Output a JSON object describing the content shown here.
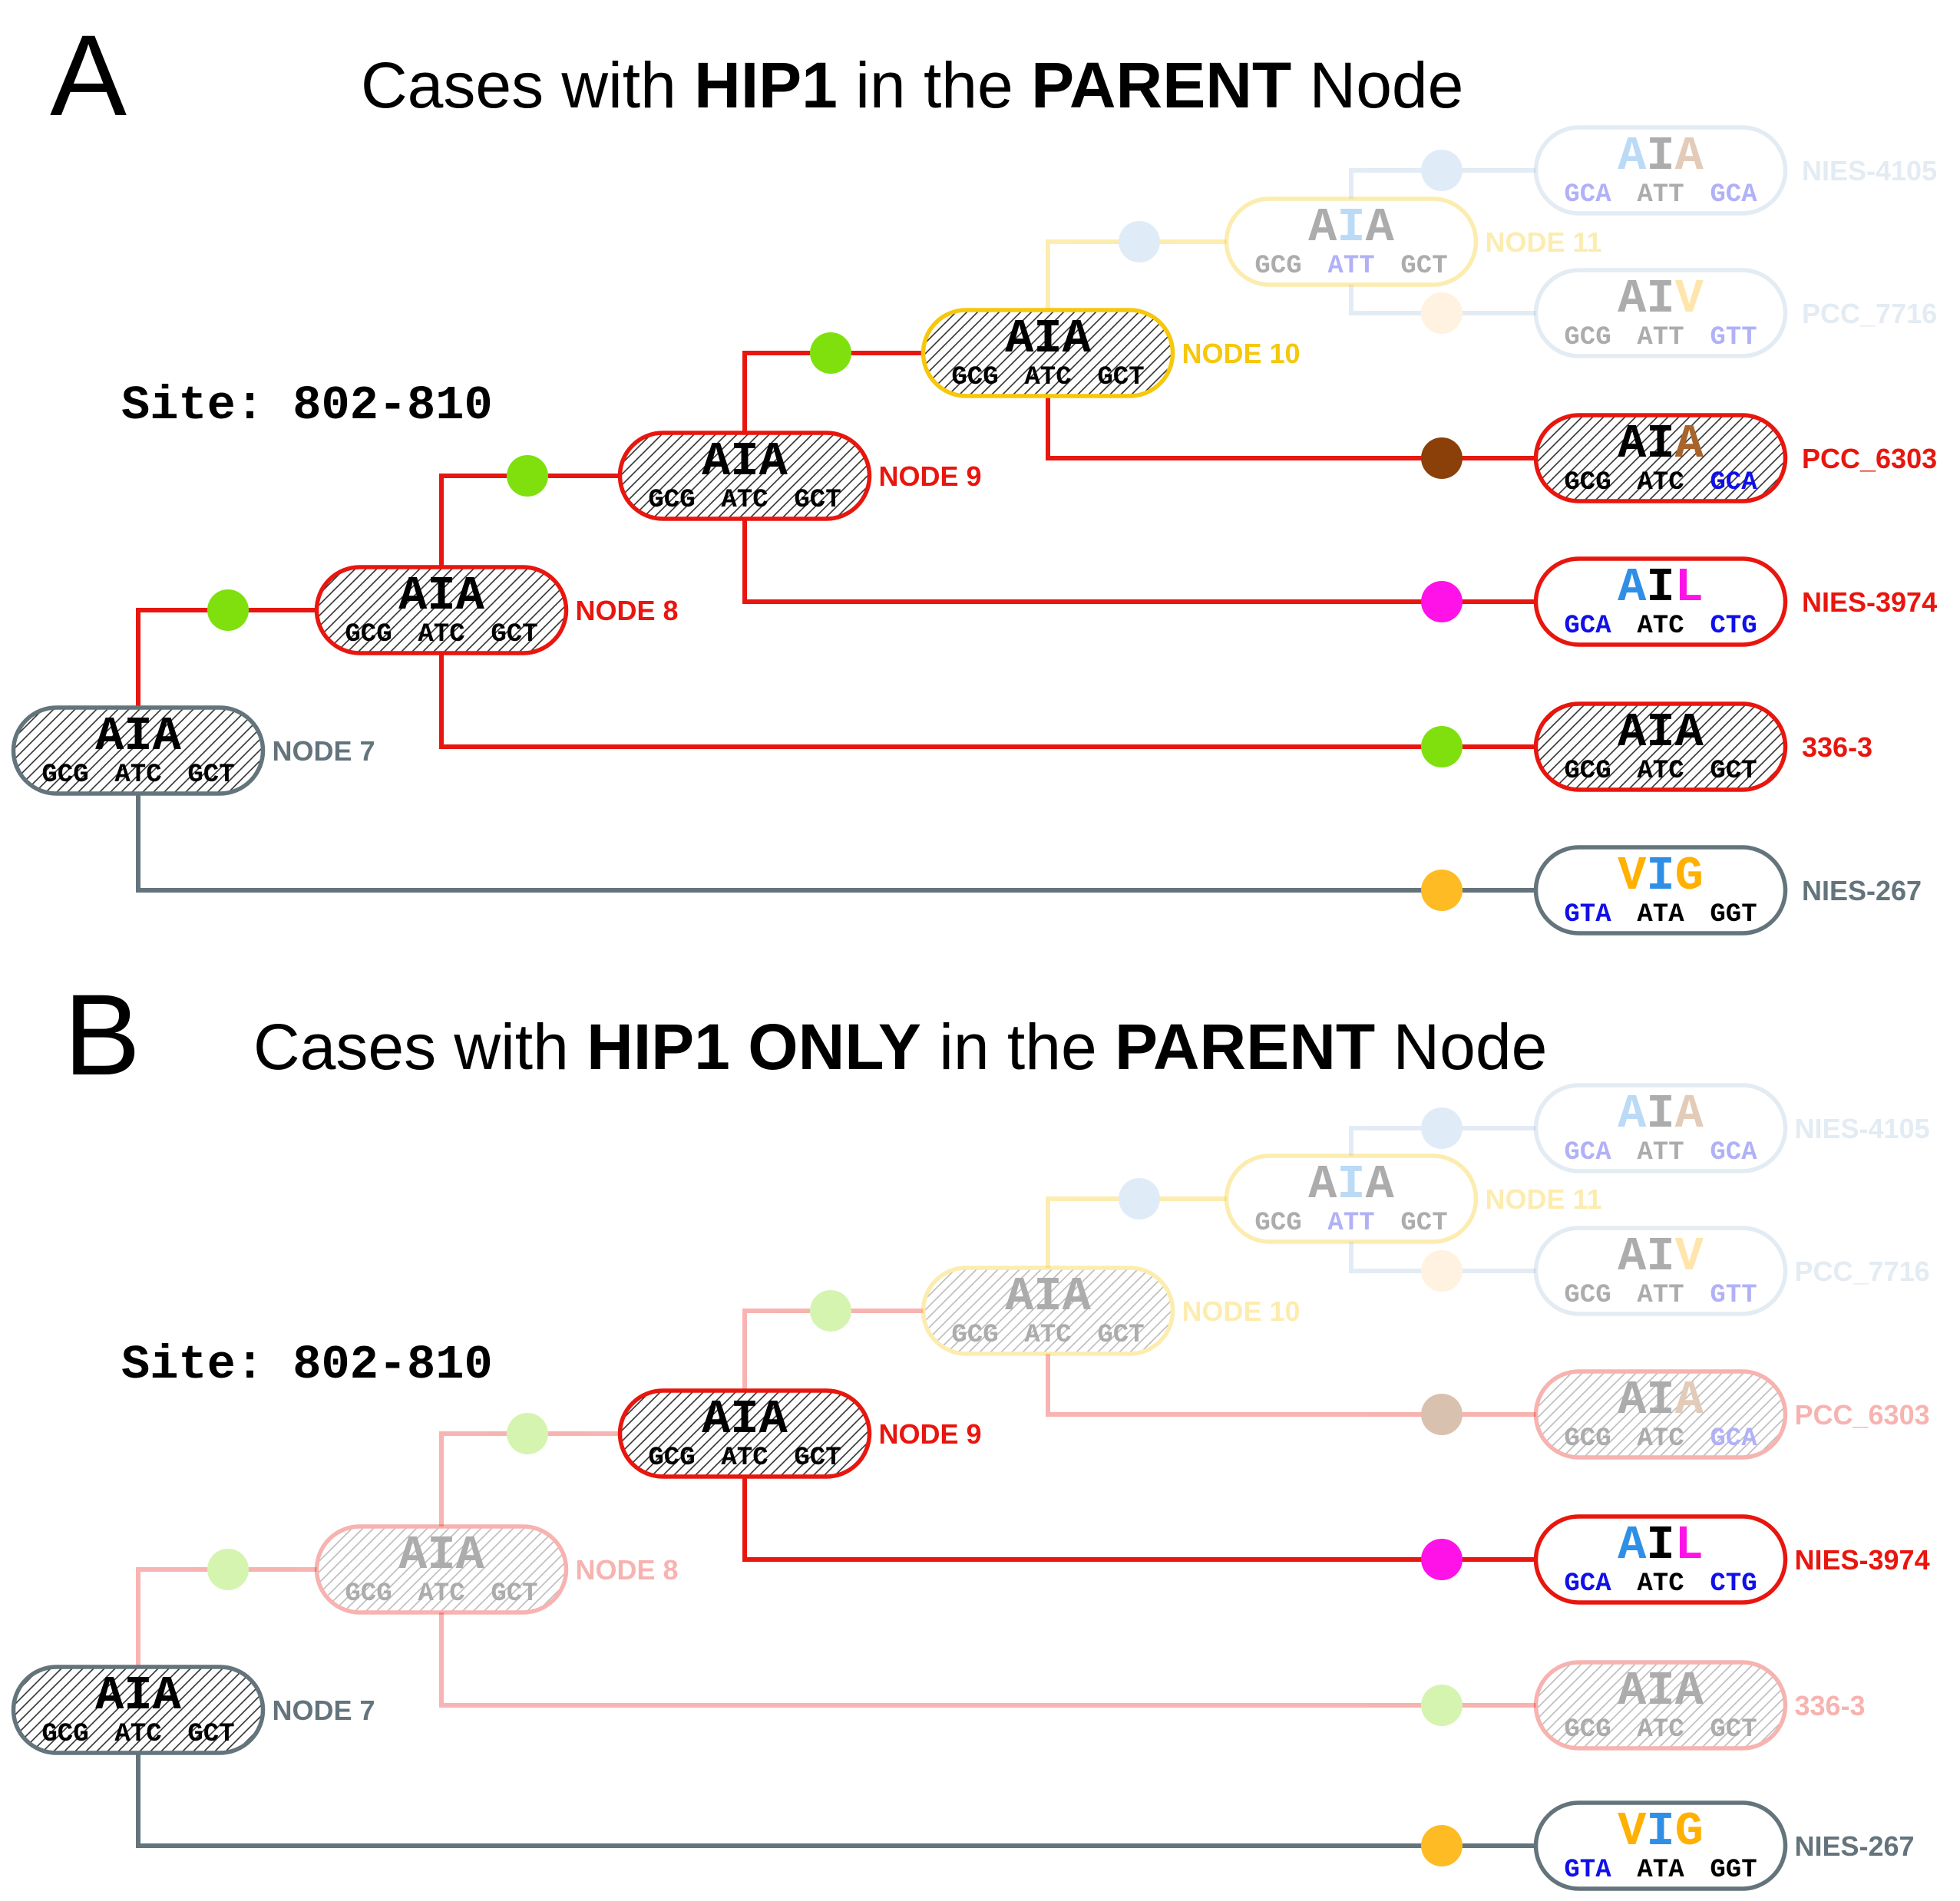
{
  "colors": {
    "red": "#e8160e",
    "gray": "#64747c",
    "yellow": "#f6c70a",
    "light_blue": "#a9c3dc",
    "green": "#7fe00e",
    "brown": "#8b4009",
    "magenta": "#ff12e7",
    "orange": "#ffbb24",
    "sky": "#9fc5ea",
    "pale_orange": "#ffd9a0",
    "aa_blue": "#2f8fe6",
    "codon_blue": "#1010e8",
    "aa_brown": "#a8642a",
    "aa_orange": "#ffb000"
  },
  "panels": [
    {
      "letter": "A",
      "title": [
        {
          "text": "Cases with ",
          "bold": false
        },
        {
          "text": "HIP1",
          "bold": true
        },
        {
          "text": " in the ",
          "bold": false
        },
        {
          "text": "PARENT",
          "bold": true
        },
        {
          "text": " Node",
          "bold": false
        }
      ],
      "site": "Site: 802-810",
      "nodes": [
        {
          "id": "n7",
          "label": "NODE 7",
          "aa": [
            [
              "A",
              "black"
            ],
            [
              "I",
              "black"
            ],
            [
              "A",
              "black"
            ]
          ],
          "codons": [
            [
              "GCG",
              "black"
            ],
            [
              "ATC",
              "black"
            ],
            [
              "GCT",
              "black"
            ]
          ],
          "hatched": true,
          "border": "gray",
          "label_color": "gray",
          "faded": false
        },
        {
          "id": "n8",
          "label": "NODE 8",
          "aa": [
            [
              "A",
              "black"
            ],
            [
              "I",
              "black"
            ],
            [
              "A",
              "black"
            ]
          ],
          "codons": [
            [
              "GCG",
              "black"
            ],
            [
              "ATC",
              "black"
            ],
            [
              "GCT",
              "black"
            ]
          ],
          "hatched": true,
          "border": "red",
          "label_color": "red",
          "faded": false
        },
        {
          "id": "n9",
          "label": "NODE 9",
          "aa": [
            [
              "A",
              "black"
            ],
            [
              "I",
              "black"
            ],
            [
              "A",
              "black"
            ]
          ],
          "codons": [
            [
              "GCG",
              "black"
            ],
            [
              "ATC",
              "black"
            ],
            [
              "GCT",
              "black"
            ]
          ],
          "hatched": true,
          "border": "red",
          "label_color": "red",
          "faded": false
        },
        {
          "id": "n10",
          "label": "NODE 10",
          "aa": [
            [
              "A",
              "black"
            ],
            [
              "I",
              "black"
            ],
            [
              "A",
              "black"
            ]
          ],
          "codons": [
            [
              "GCG",
              "black"
            ],
            [
              "ATC",
              "black"
            ],
            [
              "GCT",
              "black"
            ]
          ],
          "hatched": true,
          "border": "yellow",
          "label_color": "yellow",
          "faded": false
        },
        {
          "id": "n11",
          "label": "NODE 11",
          "aa": [
            [
              "A",
              "black"
            ],
            [
              "I",
              "aa_blue"
            ],
            [
              "A",
              "black"
            ]
          ],
          "codons": [
            [
              "GCG",
              "black"
            ],
            [
              "ATT",
              "codon_blue"
            ],
            [
              "GCT",
              "black"
            ]
          ],
          "hatched": false,
          "border": "yellow",
          "label_color": "yellow",
          "faded": true
        },
        {
          "id": "nies4105",
          "label": "NIES-4105",
          "aa": [
            [
              "A",
              "aa_blue"
            ],
            [
              "I",
              "black"
            ],
            [
              "A",
              "aa_brown"
            ]
          ],
          "codons": [
            [
              "GCA",
              "codon_blue"
            ],
            [
              "ATT",
              "black"
            ],
            [
              "GCA",
              "codon_blue"
            ]
          ],
          "hatched": false,
          "border": "light_blue",
          "label_color": "light_blue",
          "faded": true
        },
        {
          "id": "pcc7716",
          "label": "PCC_7716",
          "aa": [
            [
              "A",
              "black"
            ],
            [
              "I",
              "black"
            ],
            [
              "V",
              "aa_orange"
            ]
          ],
          "codons": [
            [
              "GCG",
              "black"
            ],
            [
              "ATT",
              "black"
            ],
            [
              "GTT",
              "codon_blue"
            ]
          ],
          "hatched": false,
          "border": "light_blue",
          "label_color": "light_blue",
          "faded": true
        },
        {
          "id": "pcc6303",
          "label": "PCC_6303",
          "aa": [
            [
              "A",
              "black"
            ],
            [
              "I",
              "black"
            ],
            [
              "A",
              "aa_brown"
            ]
          ],
          "codons": [
            [
              "GCG",
              "black"
            ],
            [
              "ATC",
              "black"
            ],
            [
              "GCA",
              "codon_blue"
            ]
          ],
          "hatched": true,
          "border": "red",
          "label_color": "red",
          "faded": false
        },
        {
          "id": "nies3974",
          "label": "NIES-3974",
          "aa": [
            [
              "A",
              "aa_blue"
            ],
            [
              "I",
              "black"
            ],
            [
              "L",
              "magenta"
            ]
          ],
          "codons": [
            [
              "GCA",
              "codon_blue"
            ],
            [
              "ATC",
              "black"
            ],
            [
              "CTG",
              "codon_blue"
            ]
          ],
          "hatched": false,
          "border": "red",
          "label_color": "red",
          "faded": false
        },
        {
          "id": "s3363",
          "label": "336-3",
          "aa": [
            [
              "A",
              "black"
            ],
            [
              "I",
              "black"
            ],
            [
              "A",
              "black"
            ]
          ],
          "codons": [
            [
              "GCG",
              "black"
            ],
            [
              "ATC",
              "black"
            ],
            [
              "GCT",
              "black"
            ]
          ],
          "hatched": true,
          "border": "red",
          "label_color": "red",
          "faded": false
        },
        {
          "id": "nies267",
          "label": "NIES-267",
          "aa": [
            [
              "V",
              "aa_orange"
            ],
            [
              "I",
              "aa_blue"
            ],
            [
              "G",
              "aa_orange"
            ]
          ],
          "codons": [
            [
              "GTA",
              "codon_blue"
            ],
            [
              "ATA",
              "black"
            ],
            [
              "GGT",
              "black"
            ]
          ],
          "hatched": false,
          "border": "gray",
          "label_color": "gray",
          "faded": false
        }
      ],
      "edges": [
        {
          "from": "n7",
          "to": "n8",
          "color": "red",
          "dot": "green",
          "faded": false
        },
        {
          "from": "n7",
          "to": "nies267",
          "color": "gray",
          "dot": "orange",
          "faded": false
        },
        {
          "from": "n8",
          "to": "n9",
          "color": "red",
          "dot": "green",
          "faded": false
        },
        {
          "from": "n8",
          "to": "s3363",
          "color": "red",
          "dot": "green",
          "faded": false
        },
        {
          "from": "n9",
          "to": "n10",
          "color": "red",
          "dot": "green",
          "faded": false
        },
        {
          "from": "n9",
          "to": "nies3974",
          "color": "red",
          "dot": "magenta",
          "faded": false
        },
        {
          "from": "n10",
          "to": "n11",
          "color": "yellow",
          "dot": "sky",
          "faded": true
        },
        {
          "from": "n10",
          "to": "pcc6303",
          "color": "red",
          "dot": "brown",
          "faded": false
        },
        {
          "from": "n11",
          "to": "nies4105",
          "color": "light_blue",
          "dot": "sky",
          "faded": true
        },
        {
          "from": "n11",
          "to": "pcc7716",
          "color": "light_blue",
          "dot": "pale_orange",
          "faded": true
        }
      ]
    },
    {
      "letter": "B",
      "title": [
        {
          "text": "Cases with ",
          "bold": false
        },
        {
          "text": "HIP1",
          "bold": true
        },
        {
          "text": " ONLY",
          "bold": true
        },
        {
          "text": " in the ",
          "bold": false
        },
        {
          "text": "PARENT",
          "bold": true
        },
        {
          "text": " Node",
          "bold": false
        }
      ],
      "site": "Site: 802-810",
      "nodes": [
        {
          "id": "n7",
          "label": "NODE 7",
          "aa": [
            [
              "A",
              "black"
            ],
            [
              "I",
              "black"
            ],
            [
              "A",
              "black"
            ]
          ],
          "codons": [
            [
              "GCG",
              "black"
            ],
            [
              "ATC",
              "black"
            ],
            [
              "GCT",
              "black"
            ]
          ],
          "hatched": true,
          "border": "gray",
          "label_color": "gray",
          "faded": false
        },
        {
          "id": "n8",
          "label": "NODE 8",
          "aa": [
            [
              "A",
              "black"
            ],
            [
              "I",
              "black"
            ],
            [
              "A",
              "black"
            ]
          ],
          "codons": [
            [
              "GCG",
              "black"
            ],
            [
              "ATC",
              "black"
            ],
            [
              "GCT",
              "black"
            ]
          ],
          "hatched": true,
          "border": "red",
          "label_color": "red",
          "faded": true
        },
        {
          "id": "n9",
          "label": "NODE 9",
          "aa": [
            [
              "A",
              "black"
            ],
            [
              "I",
              "black"
            ],
            [
              "A",
              "black"
            ]
          ],
          "codons": [
            [
              "GCG",
              "black"
            ],
            [
              "ATC",
              "black"
            ],
            [
              "GCT",
              "black"
            ]
          ],
          "hatched": true,
          "border": "red",
          "label_color": "red",
          "faded": false
        },
        {
          "id": "n10",
          "label": "NODE 10",
          "aa": [
            [
              "A",
              "black"
            ],
            [
              "I",
              "black"
            ],
            [
              "A",
              "black"
            ]
          ],
          "codons": [
            [
              "GCG",
              "black"
            ],
            [
              "ATC",
              "black"
            ],
            [
              "GCT",
              "black"
            ]
          ],
          "hatched": true,
          "border": "yellow",
          "label_color": "yellow",
          "faded": true
        },
        {
          "id": "n11",
          "label": "NODE 11",
          "aa": [
            [
              "A",
              "black"
            ],
            [
              "I",
              "aa_blue"
            ],
            [
              "A",
              "black"
            ]
          ],
          "codons": [
            [
              "GCG",
              "black"
            ],
            [
              "ATT",
              "codon_blue"
            ],
            [
              "GCT",
              "black"
            ]
          ],
          "hatched": false,
          "border": "yellow",
          "label_color": "yellow",
          "faded": true
        },
        {
          "id": "nies4105",
          "label": "NIES-4105",
          "aa": [
            [
              "A",
              "aa_blue"
            ],
            [
              "I",
              "black"
            ],
            [
              "A",
              "aa_brown"
            ]
          ],
          "codons": [
            [
              "GCA",
              "codon_blue"
            ],
            [
              "ATT",
              "black"
            ],
            [
              "GCA",
              "codon_blue"
            ]
          ],
          "hatched": false,
          "border": "light_blue",
          "label_color": "light_blue",
          "faded": true
        },
        {
          "id": "pcc7716",
          "label": "PCC_7716",
          "aa": [
            [
              "A",
              "black"
            ],
            [
              "I",
              "black"
            ],
            [
              "V",
              "aa_orange"
            ]
          ],
          "codons": [
            [
              "GCG",
              "black"
            ],
            [
              "ATT",
              "black"
            ],
            [
              "GTT",
              "codon_blue"
            ]
          ],
          "hatched": false,
          "border": "light_blue",
          "label_color": "light_blue",
          "faded": true
        },
        {
          "id": "pcc6303",
          "label": "PCC_6303",
          "aa": [
            [
              "A",
              "black"
            ],
            [
              "I",
              "black"
            ],
            [
              "A",
              "aa_brown"
            ]
          ],
          "codons": [
            [
              "GCG",
              "black"
            ],
            [
              "ATC",
              "black"
            ],
            [
              "GCA",
              "codon_blue"
            ]
          ],
          "hatched": true,
          "border": "red",
          "label_color": "red",
          "faded": true
        },
        {
          "id": "nies3974",
          "label": "NIES-3974",
          "aa": [
            [
              "A",
              "aa_blue"
            ],
            [
              "I",
              "black"
            ],
            [
              "L",
              "magenta"
            ]
          ],
          "codons": [
            [
              "GCA",
              "codon_blue"
            ],
            [
              "ATC",
              "black"
            ],
            [
              "CTG",
              "codon_blue"
            ]
          ],
          "hatched": false,
          "border": "red",
          "label_color": "red",
          "faded": false
        },
        {
          "id": "s3363",
          "label": "336-3",
          "aa": [
            [
              "A",
              "black"
            ],
            [
              "I",
              "black"
            ],
            [
              "A",
              "black"
            ]
          ],
          "codons": [
            [
              "GCG",
              "black"
            ],
            [
              "ATC",
              "black"
            ],
            [
              "GCT",
              "black"
            ]
          ],
          "hatched": true,
          "border": "red",
          "label_color": "red",
          "faded": true
        },
        {
          "id": "nies267",
          "label": "NIES-267",
          "aa": [
            [
              "V",
              "aa_orange"
            ],
            [
              "I",
              "aa_blue"
            ],
            [
              "G",
              "aa_orange"
            ]
          ],
          "codons": [
            [
              "GTA",
              "codon_blue"
            ],
            [
              "ATA",
              "black"
            ],
            [
              "GGT",
              "black"
            ]
          ],
          "hatched": false,
          "border": "gray",
          "label_color": "gray",
          "faded": false
        }
      ],
      "edges": [
        {
          "from": "n7",
          "to": "n8",
          "color": "red",
          "dot": "green",
          "faded": true
        },
        {
          "from": "n7",
          "to": "nies267",
          "color": "gray",
          "dot": "orange",
          "faded": false
        },
        {
          "from": "n8",
          "to": "n9",
          "color": "red",
          "dot": "green",
          "faded": true
        },
        {
          "from": "n8",
          "to": "s3363",
          "color": "red",
          "dot": "green",
          "faded": true
        },
        {
          "from": "n9",
          "to": "n10",
          "color": "red",
          "dot": "green",
          "faded": true
        },
        {
          "from": "n9",
          "to": "nies3974",
          "color": "red",
          "dot": "magenta",
          "faded": false
        },
        {
          "from": "n10",
          "to": "n11",
          "color": "yellow",
          "dot": "sky",
          "faded": true
        },
        {
          "from": "n10",
          "to": "pcc6303",
          "color": "red",
          "dot": "brown",
          "faded": true
        },
        {
          "from": "n11",
          "to": "nies4105",
          "color": "light_blue",
          "dot": "sky",
          "faded": true
        },
        {
          "from": "n11",
          "to": "pcc7716",
          "color": "light_blue",
          "dot": "pale_orange",
          "faded": true
        }
      ]
    }
  ]
}
